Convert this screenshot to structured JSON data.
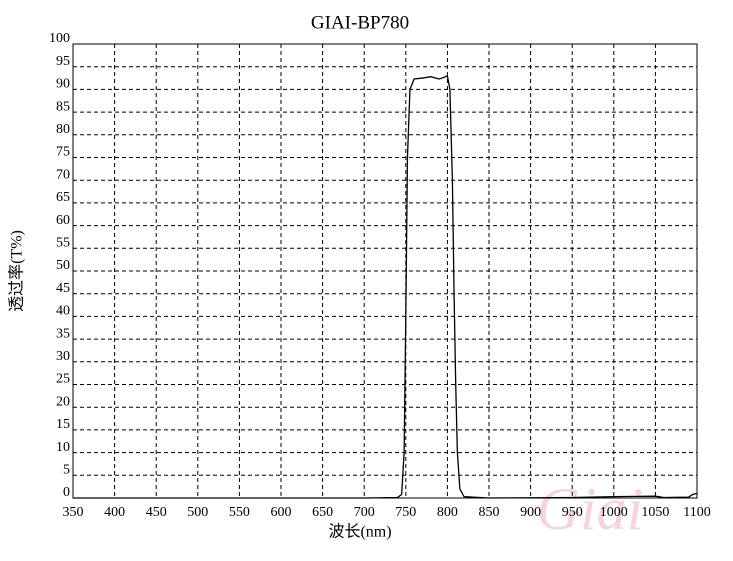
{
  "chart_data": {
    "type": "line",
    "title": "GIAI-BP780",
    "x_label": "波长(nm)",
    "y_label": "透过率(T%)",
    "watermark": "Giai",
    "xlim": [
      350,
      1100
    ],
    "ylim": [
      0,
      100
    ],
    "xticks": [
      350,
      400,
      450,
      500,
      550,
      600,
      650,
      700,
      750,
      800,
      850,
      900,
      950,
      1000,
      1050,
      1100
    ],
    "yticks": [
      0,
      5,
      10,
      15,
      20,
      25,
      30,
      35,
      40,
      45,
      50,
      55,
      60,
      65,
      70,
      75,
      80,
      85,
      90,
      95,
      100
    ],
    "grid": true,
    "series": [
      {
        "color": "#000000",
        "x": [
          350,
          700,
          740,
          745,
          748,
          750,
          752,
          755,
          760,
          770,
          780,
          790,
          795,
          800,
          803,
          806,
          808,
          810,
          812,
          815,
          820,
          850,
          950,
          1000,
          1050,
          1060,
          1090,
          1095,
          1100
        ],
        "values": [
          0,
          0,
          0.1,
          0.8,
          10,
          40,
          75,
          90,
          92.3,
          92.5,
          92.8,
          92.3,
          92.6,
          93,
          90,
          70,
          45,
          25,
          10,
          2,
          0.3,
          0,
          0.1,
          0.3,
          0.4,
          0.1,
          0.2,
          0.8,
          1
        ]
      }
    ]
  }
}
